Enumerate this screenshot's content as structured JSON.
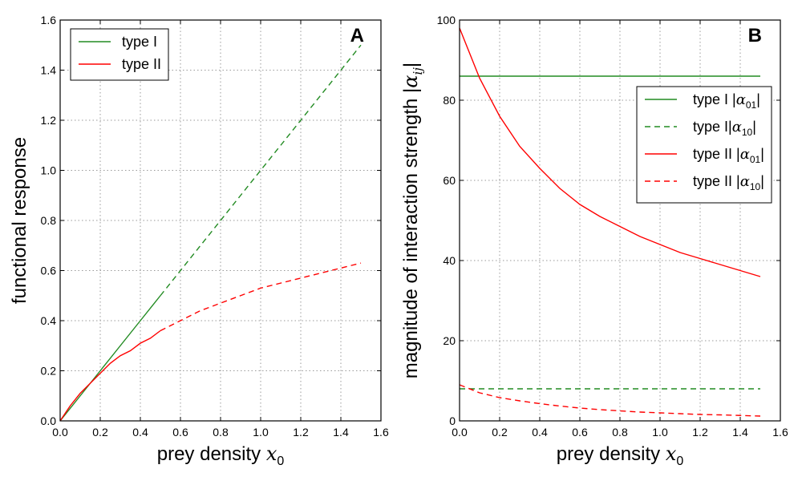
{
  "colors": {
    "type1": "#228B22",
    "type2": "#FF0000"
  },
  "chart_data": [
    {
      "type": "line",
      "panel_label": "A",
      "xlabel_text": "prey density",
      "xlabel_math": "x",
      "xlabel_sub": "0",
      "ylabel": "functional response",
      "xlim": [
        0,
        1.6
      ],
      "ylim": [
        0,
        1.6
      ],
      "xticks": [
        0,
        0.2,
        0.4,
        0.6,
        0.8,
        1.0,
        1.2,
        1.4,
        1.6
      ],
      "yticks": [
        0,
        0.2,
        0.4,
        0.6,
        0.8,
        1.0,
        1.2,
        1.4,
        1.6
      ],
      "xtick_labels": [
        "0.0",
        "0.2",
        "0.4",
        "0.6",
        "0.8",
        "1.0",
        "1.2",
        "1.4",
        "1.6"
      ],
      "ytick_labels": [
        "0.0",
        "0.2",
        "0.4",
        "0.6",
        "0.8",
        "1.0",
        "1.2",
        "1.4",
        "1.6"
      ],
      "grid": true,
      "legend_position": "top-left",
      "legend": [
        {
          "label": "type I",
          "color": "#228B22",
          "style": "solid"
        },
        {
          "label": "type II",
          "color": "#FF0000",
          "style": "solid"
        }
      ],
      "series": [
        {
          "legend_label": "type I",
          "color": "#228B22",
          "style": "solid",
          "x": [
            0,
            0.1,
            0.2,
            0.3,
            0.4,
            0.5
          ],
          "y": [
            0,
            0.1,
            0.2,
            0.3,
            0.4,
            0.5
          ]
        },
        {
          "legend_label": "type I",
          "color": "#228B22",
          "style": "dashed",
          "x": [
            0.5,
            0.7,
            0.9,
            1.1,
            1.3,
            1.5
          ],
          "y": [
            0.5,
            0.7,
            0.9,
            1.1,
            1.3,
            1.5
          ]
        },
        {
          "legend_label": "type II",
          "color": "#FF0000",
          "style": "solid",
          "x": [
            0,
            0.05,
            0.1,
            0.15,
            0.2,
            0.25,
            0.3,
            0.35,
            0.4,
            0.45,
            0.5
          ],
          "y": [
            0,
            0.06,
            0.11,
            0.15,
            0.19,
            0.23,
            0.26,
            0.28,
            0.31,
            0.33,
            0.36
          ]
        },
        {
          "legend_label": "type II",
          "color": "#FF0000",
          "style": "dashed",
          "x": [
            0.5,
            0.6,
            0.7,
            0.8,
            0.9,
            1.0,
            1.1,
            1.2,
            1.3,
            1.4,
            1.5
          ],
          "y": [
            0.36,
            0.4,
            0.44,
            0.47,
            0.5,
            0.53,
            0.55,
            0.57,
            0.59,
            0.61,
            0.63
          ]
        }
      ]
    },
    {
      "type": "line",
      "panel_label": "B",
      "xlabel_text": "prey density",
      "xlabel_math": "x",
      "xlabel_sub": "0",
      "ylabel_text": "magnitude of interaction strength",
      "ylabel_math": "α",
      "ylabel_sub": "ij",
      "xlim": [
        0,
        1.6
      ],
      "ylim": [
        0,
        100
      ],
      "xticks": [
        0,
        0.2,
        0.4,
        0.6,
        0.8,
        1.0,
        1.2,
        1.4,
        1.6
      ],
      "yticks": [
        0,
        20,
        40,
        60,
        80,
        100
      ],
      "xtick_labels": [
        "0.0",
        "0.2",
        "0.4",
        "0.6",
        "0.8",
        "1.0",
        "1.2",
        "1.4",
        "1.6"
      ],
      "ytick_labels": [
        "0",
        "20",
        "40",
        "60",
        "80",
        "100"
      ],
      "grid": true,
      "legend_position": "center-right",
      "legend": [
        {
          "label": "type I ",
          "math": "α",
          "sub": "01",
          "color": "#228B22",
          "style": "solid"
        },
        {
          "label": "type I",
          "math": "α",
          "sub": "10",
          "color": "#228B22",
          "style": "dashed"
        },
        {
          "label": "type II ",
          "math": "α",
          "sub": "01",
          "color": "#FF0000",
          "style": "solid"
        },
        {
          "label": "type II ",
          "math": "α",
          "sub": "10",
          "color": "#FF0000",
          "style": "dashed"
        }
      ],
      "series": [
        {
          "legend_label": "type I |α01|",
          "color": "#228B22",
          "style": "solid",
          "x": [
            0,
            1.5
          ],
          "y": [
            86,
            86
          ]
        },
        {
          "legend_label": "type I|α10|",
          "color": "#228B22",
          "style": "dashed",
          "x": [
            0,
            1.5
          ],
          "y": [
            8,
            8
          ]
        },
        {
          "legend_label": "type II |α01|",
          "color": "#FF0000",
          "style": "solid",
          "x": [
            0,
            0.1,
            0.2,
            0.3,
            0.4,
            0.5,
            0.6,
            0.7,
            0.8,
            0.9,
            1.0,
            1.1,
            1.2,
            1.3,
            1.4,
            1.5
          ],
          "y": [
            98,
            85.5,
            76,
            68.5,
            63,
            58,
            54,
            51,
            48.5,
            46,
            44,
            42,
            40.5,
            39,
            37.5,
            36
          ]
        },
        {
          "legend_label": "type II |α10|",
          "color": "#FF0000",
          "style": "dashed",
          "x": [
            0,
            0.1,
            0.2,
            0.3,
            0.4,
            0.5,
            0.6,
            0.7,
            0.8,
            0.9,
            1.0,
            1.1,
            1.2,
            1.3,
            1.4,
            1.5
          ],
          "y": [
            9,
            7,
            5.8,
            5.0,
            4.3,
            3.7,
            3.2,
            2.8,
            2.5,
            2.2,
            2.0,
            1.8,
            1.6,
            1.5,
            1.35,
            1.2
          ]
        }
      ]
    }
  ]
}
